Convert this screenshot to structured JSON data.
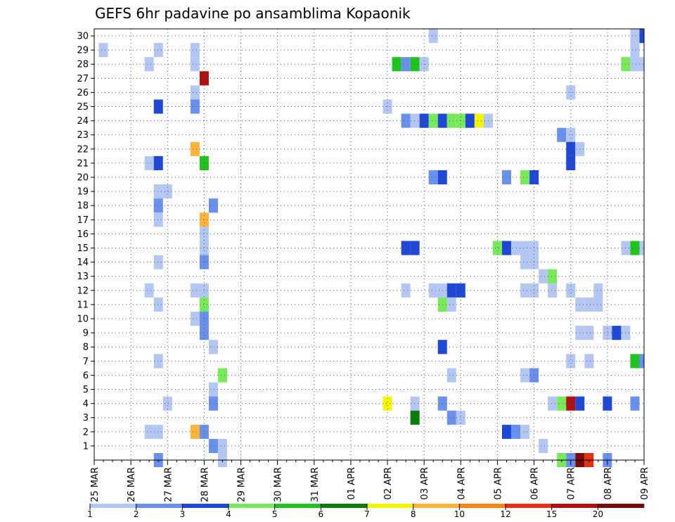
{
  "chart_data": {
    "type": "heatmap",
    "title": "GEFS 6hr padavine po ansamblima Kopaonik",
    "xlabel": "",
    "ylabel": "",
    "x_tick_labels": [
      "25 MAR",
      "26 MAR",
      "27 MAR",
      "28 MAR",
      "29 MAR",
      "30 MAR",
      "31 MAR",
      "01 APR",
      "02 APR",
      "03 APR",
      "04 APR",
      "05 APR",
      "06 APR",
      "07 APR",
      "08 APR",
      "09 APR"
    ],
    "y_tick_labels": [
      "1",
      "2",
      "3",
      "4",
      "5",
      "6",
      "7",
      "8",
      "9",
      "10",
      "11",
      "12",
      "13",
      "14",
      "15",
      "16",
      "17",
      "18",
      "19",
      "20",
      "21",
      "22",
      "23",
      "24",
      "25",
      "26",
      "27",
      "28",
      "29",
      "30"
    ],
    "time_step": "6hr",
    "xlim": [
      0,
      60
    ],
    "ylim": [
      0,
      30
    ],
    "grid": true,
    "legend_position": "bottom",
    "color_scale": {
      "thresholds": [
        "1",
        "2",
        "3",
        "4",
        "5",
        "6",
        "7",
        "8",
        "10",
        "12",
        "15",
        "20"
      ],
      "colors": [
        "#b4c7f2",
        "#6a90ed",
        "#1f48d8",
        "#78ea5a",
        "#1ec51e",
        "#0a7d0a",
        "#f5f500",
        "#fdb23a",
        "#f98414",
        "#e13214",
        "#b01010",
        "#7a0a0a"
      ]
    },
    "cells": [
      [
        1,
        29,
        1
      ],
      [
        7,
        29,
        1
      ],
      [
        11,
        29,
        1
      ],
      [
        6,
        28,
        1
      ],
      [
        11,
        28,
        1
      ],
      [
        12,
        27,
        11
      ],
      [
        11,
        26,
        1
      ],
      [
        7,
        25,
        3
      ],
      [
        11,
        25,
        2
      ],
      [
        11,
        22,
        8
      ],
      [
        6,
        21,
        1
      ],
      [
        7,
        21,
        3
      ],
      [
        12,
        21,
        5
      ],
      [
        7,
        19,
        1
      ],
      [
        8,
        19,
        1
      ],
      [
        7,
        18,
        2
      ],
      [
        13,
        18,
        2
      ],
      [
        7,
        17,
        1
      ],
      [
        12,
        17,
        8
      ],
      [
        12,
        16,
        1
      ],
      [
        12,
        15,
        1
      ],
      [
        7,
        14,
        1
      ],
      [
        12,
        14,
        2
      ],
      [
        6,
        12,
        1
      ],
      [
        11,
        12,
        1
      ],
      [
        12,
        12,
        1
      ],
      [
        7,
        11,
        1
      ],
      [
        12,
        11,
        4
      ],
      [
        11,
        10,
        1
      ],
      [
        12,
        10,
        2
      ],
      [
        12,
        9,
        2
      ],
      [
        13,
        8,
        1
      ],
      [
        7,
        7,
        1
      ],
      [
        14,
        6,
        4
      ],
      [
        13,
        5,
        1
      ],
      [
        8,
        4,
        1
      ],
      [
        13,
        4,
        2
      ],
      [
        6,
        2,
        1
      ],
      [
        7,
        2,
        1
      ],
      [
        11,
        2,
        8
      ],
      [
        12,
        2,
        2
      ],
      [
        13,
        1,
        2
      ],
      [
        14,
        1,
        1
      ],
      [
        14,
        0,
        1
      ],
      [
        7,
        0,
        2
      ],
      [
        37,
        30,
        1
      ],
      [
        33,
        28,
        5
      ],
      [
        34,
        28,
        2
      ],
      [
        35,
        28,
        5
      ],
      [
        36,
        28,
        1
      ],
      [
        32,
        25,
        1
      ],
      [
        34,
        24,
        2
      ],
      [
        35,
        24,
        1
      ],
      [
        36,
        24,
        3
      ],
      [
        37,
        24,
        4
      ],
      [
        38,
        24,
        3
      ],
      [
        39,
        24,
        4
      ],
      [
        40,
        24,
        4
      ],
      [
        41,
        24,
        3
      ],
      [
        42,
        24,
        7
      ],
      [
        43,
        24,
        1
      ],
      [
        37,
        20,
        2
      ],
      [
        38,
        20,
        3
      ],
      [
        34,
        15,
        3
      ],
      [
        35,
        15,
        3
      ],
      [
        34,
        12,
        1
      ],
      [
        37,
        12,
        1
      ],
      [
        38,
        12,
        1
      ],
      [
        39,
        12,
        3
      ],
      [
        40,
        12,
        3
      ],
      [
        38,
        11,
        4
      ],
      [
        39,
        11,
        1
      ],
      [
        38,
        8,
        3
      ],
      [
        39,
        6,
        1
      ],
      [
        32,
        4,
        7
      ],
      [
        35,
        4,
        1
      ],
      [
        38,
        4,
        2
      ],
      [
        35,
        3,
        6
      ],
      [
        39,
        3,
        2
      ],
      [
        40,
        3,
        1
      ],
      [
        44,
        15,
        4
      ],
      [
        45,
        15,
        3
      ],
      [
        46,
        15,
        1
      ],
      [
        47,
        15,
        1
      ],
      [
        48,
        15,
        1
      ],
      [
        47,
        14,
        1
      ],
      [
        48,
        14,
        1
      ],
      [
        45,
        20,
        2
      ],
      [
        47,
        20,
        4
      ],
      [
        48,
        20,
        3
      ],
      [
        47,
        12,
        1
      ],
      [
        48,
        12,
        1
      ],
      [
        50,
        12,
        1
      ],
      [
        52,
        12,
        1
      ],
      [
        49,
        13,
        1
      ],
      [
        50,
        13,
        4
      ],
      [
        53,
        11,
        1
      ],
      [
        54,
        11,
        1
      ],
      [
        55,
        11,
        1
      ],
      [
        55,
        12,
        1
      ],
      [
        52,
        26,
        1
      ],
      [
        51,
        23,
        2
      ],
      [
        52,
        23,
        1
      ],
      [
        52,
        22,
        3
      ],
      [
        53,
        22,
        1
      ],
      [
        52,
        21,
        3
      ],
      [
        53,
        9,
        1
      ],
      [
        54,
        9,
        1
      ],
      [
        56,
        9,
        1
      ],
      [
        57,
        9,
        3
      ],
      [
        58,
        9,
        1
      ],
      [
        52,
        7,
        1
      ],
      [
        54,
        7,
        1
      ],
      [
        47,
        6,
        1
      ],
      [
        48,
        6,
        2
      ],
      [
        50,
        4,
        1
      ],
      [
        51,
        4,
        4
      ],
      [
        52,
        4,
        11
      ],
      [
        53,
        4,
        3
      ],
      [
        56,
        4,
        3
      ],
      [
        59,
        4,
        2
      ],
      [
        45,
        2,
        3
      ],
      [
        46,
        2,
        2
      ],
      [
        47,
        2,
        1
      ],
      [
        49,
        1,
        1
      ],
      [
        51,
        0,
        4
      ],
      [
        52,
        0,
        2
      ],
      [
        53,
        0,
        12
      ],
      [
        54,
        0,
        10
      ],
      [
        56,
        0,
        2
      ],
      [
        59,
        30,
        1
      ],
      [
        59,
        29,
        1
      ],
      [
        59,
        28,
        1
      ],
      [
        58,
        28,
        4
      ],
      [
        59,
        15,
        5
      ],
      [
        58,
        15,
        1
      ],
      [
        59,
        7,
        5
      ],
      [
        60,
        7,
        2
      ],
      [
        60,
        30,
        3
      ],
      [
        60,
        15,
        1
      ],
      [
        60,
        28,
        1
      ]
    ]
  }
}
